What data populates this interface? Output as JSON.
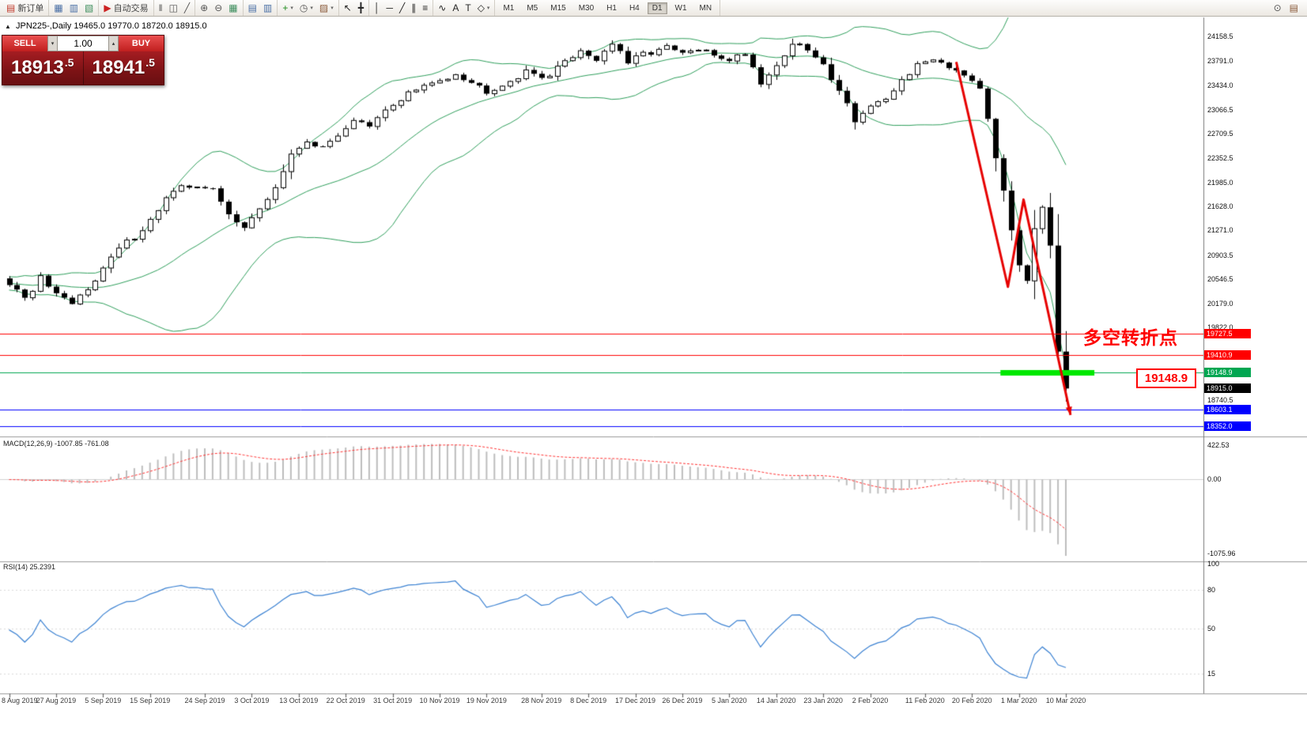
{
  "toolbar": {
    "groups": [
      {
        "name": "order",
        "items": [
          {
            "name": "new-order-button",
            "glyph": "▤",
            "label": "新订单",
            "color": "#c0392b"
          }
        ]
      },
      {
        "name": "windows",
        "items": [
          {
            "name": "chart-window-button",
            "glyph": "▦",
            "color": "#4a6fa5"
          },
          {
            "name": "market-watch-button",
            "glyph": "▥",
            "color": "#4a6fa5"
          },
          {
            "name": "navigator-button",
            "glyph": "▧",
            "color": "#3f8f5f"
          }
        ]
      },
      {
        "name": "autotrading",
        "items": [
          {
            "name": "autotrading-button",
            "glyph": "▶",
            "label": "自动交易",
            "color": "#cc2222"
          }
        ]
      },
      {
        "name": "chart-type",
        "items": [
          {
            "name": "bar-chart-button",
            "glyph": "‖",
            "color": "#555555"
          },
          {
            "name": "candlestick-chart-button",
            "glyph": "◫",
            "color": "#555555"
          },
          {
            "name": "line-chart-button",
            "glyph": "╱",
            "color": "#555555"
          }
        ]
      },
      {
        "name": "zoom",
        "items": [
          {
            "name": "zoom-in-button",
            "glyph": "⊕",
            "color": "#555555"
          },
          {
            "name": "zoom-out-button",
            "glyph": "⊖",
            "color": "#555555"
          },
          {
            "name": "auto-scroll-button",
            "glyph": "▦",
            "color": "#3f8f5f"
          }
        ]
      },
      {
        "name": "arrange",
        "items": [
          {
            "name": "tile-windows-button",
            "glyph": "▤",
            "color": "#4a6fa5"
          },
          {
            "name": "cascade-windows-button",
            "glyph": "▥",
            "color": "#4a6fa5"
          }
        ]
      },
      {
        "name": "insert",
        "items": [
          {
            "name": "indicators-button",
            "glyph": "+",
            "color": "#1c8c1c",
            "caret": true
          },
          {
            "name": "periods-button",
            "glyph": "◷",
            "color": "#555555",
            "caret": true
          },
          {
            "name": "templates-button",
            "glyph": "▨",
            "color": "#8a5a3a",
            "caret": true
          }
        ]
      },
      {
        "name": "cursor",
        "items": [
          {
            "name": "cursor-button",
            "glyph": "↖",
            "color": "#222222"
          },
          {
            "name": "crosshair-button",
            "glyph": "╋",
            "color": "#222222"
          }
        ]
      },
      {
        "name": "draw",
        "items": [
          {
            "name": "vertical-line-button",
            "glyph": "│",
            "color": "#222222"
          },
          {
            "name": "horizontal-line-button",
            "glyph": "─",
            "color": "#222222"
          },
          {
            "name": "trendline-button",
            "glyph": "╱",
            "color": "#222222"
          },
          {
            "name": "channel-button",
            "glyph": "∥",
            "color": "#222222"
          },
          {
            "name": "fibonacci-button",
            "glyph": "≡",
            "color": "#222222"
          }
        ]
      },
      {
        "name": "objects",
        "items": [
          {
            "name": "wave-tool-button",
            "glyph": "∿",
            "color": "#222222"
          },
          {
            "name": "text-tool-button",
            "glyph": "A",
            "color": "#222222"
          },
          {
            "name": "label-tool-button",
            "glyph": "T",
            "color": "#222222"
          },
          {
            "name": "shapes-button",
            "glyph": "◇",
            "color": "#222222",
            "caret": true
          }
        ]
      }
    ],
    "timeframes": {
      "items": [
        "M1",
        "M5",
        "M15",
        "M30",
        "H1",
        "H4",
        "D1",
        "W1",
        "MN"
      ],
      "active": "D1"
    },
    "right_items": [
      {
        "name": "search-button",
        "glyph": "⊙",
        "color": "#555555"
      },
      {
        "name": "help-button",
        "glyph": "▤",
        "color": "#8a5a3a"
      }
    ]
  },
  "symbol_bar": {
    "collapse_icon": "▲",
    "symbol": "JPN225-,Daily",
    "ohlc_text": "19465.0 19770.0 18720.0 18915.0"
  },
  "trade_panel": {
    "sell_label": "SELL",
    "buy_label": "BUY",
    "volume": "1.00",
    "sell_price": "18913.5",
    "buy_price": "18941.5",
    "spinner_up": "▴",
    "spinner_down": "▾"
  },
  "annotations": {
    "turning_point": "多空转折点",
    "price_callout": "19148.9"
  },
  "macd_panel": {
    "label": "MACD(12,26,9)",
    "values": "-1007.85 -761.08",
    "scale_top": "422.53",
    "scale_zero": "0.00",
    "scale_bottom": "-1075.96"
  },
  "rsi_panel": {
    "label": "RSI(14)",
    "value": "25.2391",
    "scale_labels": [
      "100",
      "80",
      "50",
      "15"
    ]
  },
  "price_axis": {
    "labels": [
      "24158.5",
      "23791.0",
      "23434.0",
      "23066.5",
      "22709.5",
      "22352.5",
      "21985.0",
      "21628.0",
      "21271.0",
      "20903.5",
      "20546.5",
      "20179.0",
      "19822.0",
      "18740.5"
    ],
    "tags": [
      {
        "text": "19727.5",
        "price": 19727.5,
        "color": "#ff0000"
      },
      {
        "text": "19410.9",
        "price": 19410.9,
        "color": "#ff0000"
      },
      {
        "text": "19148.9",
        "price": 19148.9,
        "color": "#00a651"
      },
      {
        "text": "18915.0",
        "price": 18915.0,
        "color": "#000000"
      },
      {
        "text": "18603.1",
        "price": 18603.1,
        "color": "#0000ff"
      },
      {
        "text": "18352.0",
        "price": 18352.0,
        "color": "#0000ff"
      }
    ]
  },
  "date_axis": [
    "8 Aug 2019",
    "27 Aug 2019",
    "5 Sep 2019",
    "15 Sep 2019",
    "24 Sep 2019",
    "3 Oct 2019",
    "13 Oct 2019",
    "22 Oct 2019",
    "31 Oct 2019",
    "10 Nov 2019",
    "19 Nov 2019",
    "28 Nov 2019",
    "8 Dec 2019",
    "17 Dec 2019",
    "26 Dec 2019",
    "5 Jan 2020",
    "14 Jan 2020",
    "23 Jan 2020",
    "2 Feb 2020",
    "11 Feb 2020",
    "20 Feb 2020",
    "1 Mar 2020",
    "10 Mar 2020"
  ],
  "chart_data": {
    "type": "candlestick",
    "symbol": "JPN225-",
    "timeframe": "Daily",
    "last_ohlc": {
      "open": 19465.0,
      "high": 19770.0,
      "low": 18720.0,
      "close": 18915.0
    },
    "bid": 18913.5,
    "ask": 18941.5,
    "price_range_visible": [
      18200,
      24350
    ],
    "num_candles": 136,
    "close_path_anchors": [
      [
        0,
        20480
      ],
      [
        2,
        20230
      ],
      [
        4,
        20560
      ],
      [
        6,
        20290
      ],
      [
        8,
        20160
      ],
      [
        10,
        20420
      ],
      [
        12,
        20700
      ],
      [
        14,
        21000
      ],
      [
        16,
        21180
      ],
      [
        18,
        21420
      ],
      [
        20,
        21750
      ],
      [
        22,
        21900
      ],
      [
        24,
        21950
      ],
      [
        26,
        21870
      ],
      [
        28,
        21500
      ],
      [
        30,
        21340
      ],
      [
        32,
        21560
      ],
      [
        34,
        21920
      ],
      [
        36,
        22380
      ],
      [
        38,
        22620
      ],
      [
        40,
        22480
      ],
      [
        42,
        22700
      ],
      [
        44,
        22920
      ],
      [
        46,
        22800
      ],
      [
        48,
        23050
      ],
      [
        51,
        23320
      ],
      [
        54,
        23450
      ],
      [
        57,
        23620
      ],
      [
        59,
        23480
      ],
      [
        61,
        23350
      ],
      [
        63,
        23450
      ],
      [
        66,
        23620
      ],
      [
        69,
        23570
      ],
      [
        71,
        23800
      ],
      [
        73,
        23950
      ],
      [
        75,
        23820
      ],
      [
        77,
        24060
      ],
      [
        79,
        23760
      ],
      [
        81,
        23900
      ],
      [
        84,
        23990
      ],
      [
        86,
        23900
      ],
      [
        88,
        23960
      ],
      [
        90,
        23880
      ],
      [
        92,
        23820
      ],
      [
        94,
        23920
      ],
      [
        96,
        23480
      ],
      [
        98,
        23720
      ],
      [
        100,
        24060
      ],
      [
        102,
        23960
      ],
      [
        104,
        23720
      ],
      [
        106,
        23380
      ],
      [
        108,
        22920
      ],
      [
        110,
        23120
      ],
      [
        112,
        23180
      ],
      [
        114,
        23520
      ],
      [
        116,
        23720
      ],
      [
        118,
        23840
      ],
      [
        120,
        23720
      ],
      [
        122,
        23620
      ],
      [
        124,
        23420
      ],
      [
        125,
        22960
      ],
      [
        126,
        22380
      ],
      [
        127,
        21820
      ],
      [
        128,
        21280
      ],
      [
        129,
        20780
      ],
      [
        130,
        20560
      ],
      [
        131,
        21320
      ],
      [
        132,
        21640
      ],
      [
        133,
        21020
      ],
      [
        134,
        19465
      ],
      [
        135,
        18915
      ]
    ],
    "horizontal_lines": [
      {
        "price": 19727.5,
        "color": "#ff0000"
      },
      {
        "price": 19410.9,
        "color": "#ff0000"
      },
      {
        "price": 19148.9,
        "color": "#00a651"
      },
      {
        "price": 18603.1,
        "color": "#0000ff"
      },
      {
        "price": 18352.0,
        "color": "#0000ff"
      }
    ],
    "highlight_segment": {
      "price": 19148.9,
      "from_candle": 127,
      "to_candle": 139,
      "color": "#00e800",
      "width": 7
    },
    "trend_arrow": {
      "color": "#e60000",
      "width": 3,
      "points": [
        [
          121,
          23780
        ],
        [
          127.6,
          20430
        ],
        [
          129.6,
          21730
        ],
        [
          135.6,
          18520
        ]
      ]
    },
    "bollinger": {
      "period": 20,
      "deviation": 2,
      "color": "#2e9e5b"
    },
    "macd": {
      "fast": 12,
      "slow": 26,
      "signal": 9,
      "main_value": -1007.85,
      "signal_value": -761.08,
      "histogram_color": "#bdbdbd",
      "signal_color": "#ff3333",
      "axis_max": 422.53,
      "axis_min": -1075.96
    },
    "rsi": {
      "period": 14,
      "value": 25.2391,
      "color": "#3c82d2",
      "levels": [
        80,
        50,
        15
      ]
    }
  }
}
